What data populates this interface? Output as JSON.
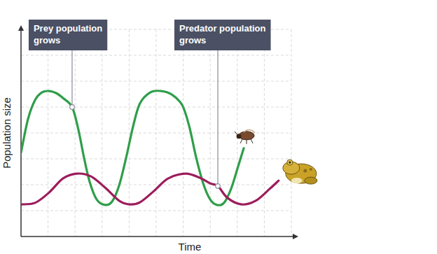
{
  "chart_data": {
    "type": "line",
    "x_label": "Time",
    "y_label": "Population size",
    "xlim": [
      0,
      10
    ],
    "ylim": [
      0,
      8
    ],
    "xticks": [
      0,
      1,
      2,
      3,
      4,
      5,
      6,
      7,
      8,
      9,
      10
    ],
    "yticks": [
      0,
      1,
      2,
      3,
      4,
      5,
      6,
      7,
      8
    ],
    "grid": true,
    "tick_labels": false,
    "series": [
      {
        "name": "Prey",
        "color": "#2f9e4a",
        "x": [
          0,
          0.26,
          0.52,
          0.78,
          1.04,
          1.3,
          1.55,
          1.89,
          2.12,
          2.33,
          2.54,
          2.8,
          3.11,
          3.37,
          3.63,
          3.89,
          4.15,
          4.4,
          4.79,
          5.18,
          5.57,
          5.96,
          6.22,
          6.48,
          6.74,
          7.0,
          7.25,
          7.51,
          7.77,
          8.03,
          8.24
        ],
        "values": [
          3.24,
          4.54,
          5.27,
          5.57,
          5.62,
          5.54,
          5.35,
          5.0,
          4.14,
          3.05,
          2.11,
          1.43,
          1.22,
          1.35,
          1.97,
          3.05,
          4.27,
          5.14,
          5.57,
          5.62,
          5.49,
          5.08,
          4.27,
          3.05,
          2.05,
          1.43,
          1.22,
          1.3,
          1.84,
          2.7,
          3.41
        ]
      },
      {
        "name": "Predator",
        "color": "#9c1d5c",
        "x": [
          0,
          0.52,
          1.04,
          1.55,
          2.07,
          2.59,
          3.11,
          3.63,
          4.02,
          4.4,
          4.92,
          5.44,
          6.09,
          6.61,
          7.0,
          7.28,
          7.64,
          8.16,
          8.68,
          9.2,
          9.53
        ],
        "values": [
          1.24,
          1.3,
          1.7,
          2.24,
          2.43,
          2.32,
          1.89,
          1.38,
          1.24,
          1.32,
          1.76,
          2.24,
          2.43,
          2.27,
          2.05,
          1.95,
          1.49,
          1.24,
          1.38,
          1.84,
          2.16
        ]
      }
    ],
    "annotations": [
      {
        "text": "Prey population grows",
        "x": 1.89,
        "y": 5.0
      },
      {
        "text": "Predator population grows",
        "x": 7.28,
        "y": 1.95
      }
    ]
  }
}
